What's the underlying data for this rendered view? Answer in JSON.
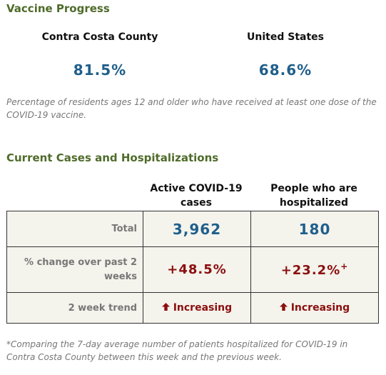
{
  "vaccine": {
    "title": "Vaccine Progress",
    "regions": [
      {
        "name": "Contra Costa County",
        "value": "81.5%"
      },
      {
        "name": "United States",
        "value": "68.6%"
      }
    ],
    "note": "Percentage of residents ages 12 and older who have received at least one dose of the COVID-19 vaccine."
  },
  "cases": {
    "title": "Current Cases and Hospitalizations",
    "columns": [
      "Active COVID-19 cases",
      "People who are hospitalized"
    ],
    "rows": [
      [
        "Total",
        "3,962",
        "180"
      ],
      [
        "% change over past 2 weeks",
        "+48.5%",
        "+23.2%"
      ],
      [
        "2 week trend",
        "Increasing",
        "Increasing"
      ]
    ],
    "marker": "+",
    "footnote": "*Comparing the 7-day average number of patients hospitalized for COVID-19 in Contra Costa County between this week and the previous week."
  }
}
